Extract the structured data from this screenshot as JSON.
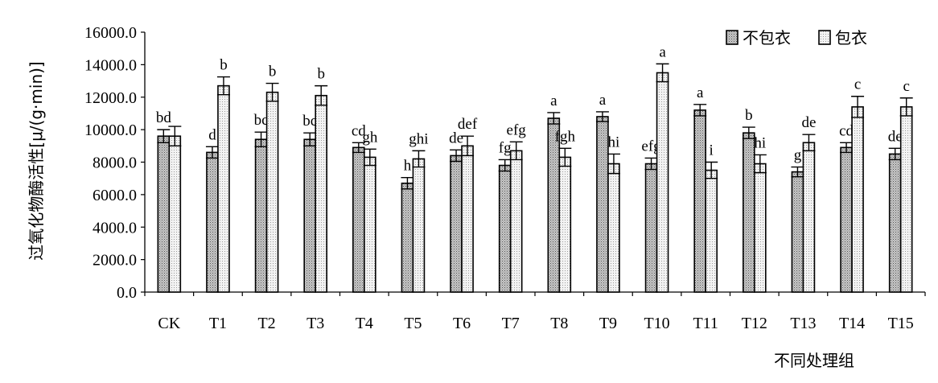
{
  "chart_data": {
    "type": "bar",
    "ylabel": "过氧化物酶活性[μ/(g·min)]",
    "xlabel": "不同处理组",
    "ylim": [
      0,
      16000
    ],
    "yticks": [
      0,
      2000,
      4000,
      6000,
      8000,
      10000,
      12000,
      14000,
      16000
    ],
    "ytick_labels": [
      "0.0",
      "2000.0",
      "4000.0",
      "6000.0",
      "8000.0",
      "10000.0",
      "12000.0",
      "14000.0",
      "16000.0"
    ],
    "grid": false,
    "legend_position": "top-right",
    "categories": [
      "CK",
      "T1",
      "T2",
      "T3",
      "T4",
      "T5",
      "T6",
      "T7",
      "T8",
      "T9",
      "T10",
      "T11",
      "T12",
      "T13",
      "T14",
      "T15"
    ],
    "series": [
      {
        "name": "不包衣",
        "color": "#9a9a9a",
        "values": [
          9600,
          8600,
          9400,
          9400,
          8900,
          6700,
          8400,
          7800,
          10700,
          10800,
          7900,
          11200,
          9800,
          7400,
          8900,
          8500
        ],
        "errors": [
          400,
          350,
          450,
          400,
          300,
          350,
          350,
          350,
          350,
          300,
          350,
          350,
          350,
          300,
          300,
          350
        ],
        "labels": [
          "bd",
          "d",
          "bc",
          "bc",
          "cd",
          "h",
          "de",
          "fg",
          "a",
          "a",
          "efg",
          "a",
          "b",
          "g",
          "cd",
          "de"
        ]
      },
      {
        "name": "包衣",
        "color": "#dcdcdc",
        "values": [
          9600,
          12700,
          12300,
          12100,
          8300,
          8200,
          9000,
          8700,
          8300,
          7900,
          13500,
          7500,
          7900,
          9200,
          11400,
          11400
        ],
        "errors": [
          600,
          550,
          550,
          600,
          500,
          500,
          600,
          550,
          550,
          600,
          550,
          500,
          550,
          500,
          650,
          550
        ],
        "labels": [
          "",
          "b",
          "b",
          "b",
          "gh",
          "ghi",
          "def",
          "efg",
          "fgh",
          "hi",
          "a",
          "i",
          "hi",
          "de",
          "c",
          "c"
        ]
      }
    ]
  }
}
